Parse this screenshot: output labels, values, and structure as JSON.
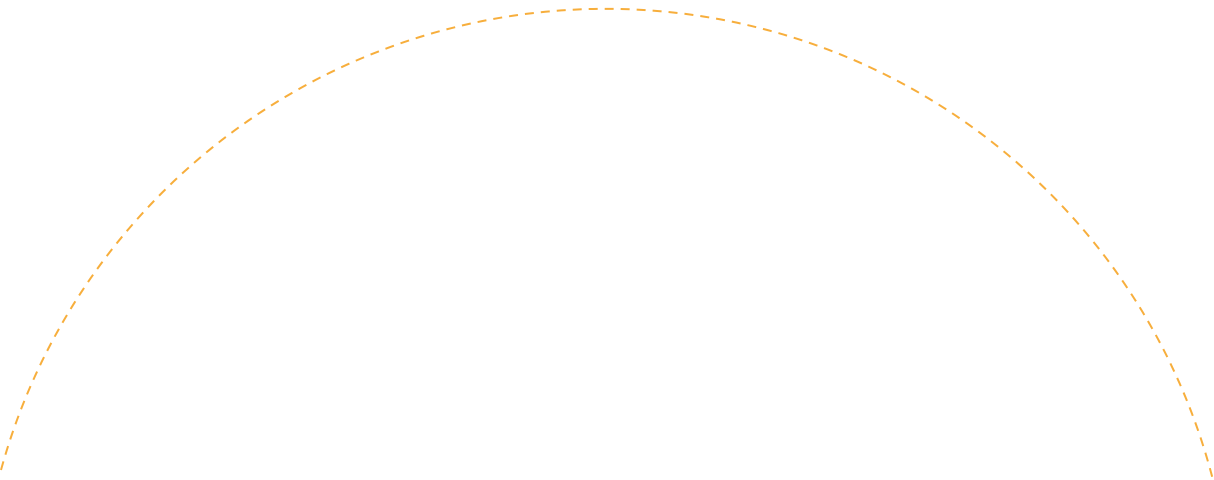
{
  "arc": {
    "stroke_color": "#f7ae3c",
    "icon": "dashed-arc"
  }
}
